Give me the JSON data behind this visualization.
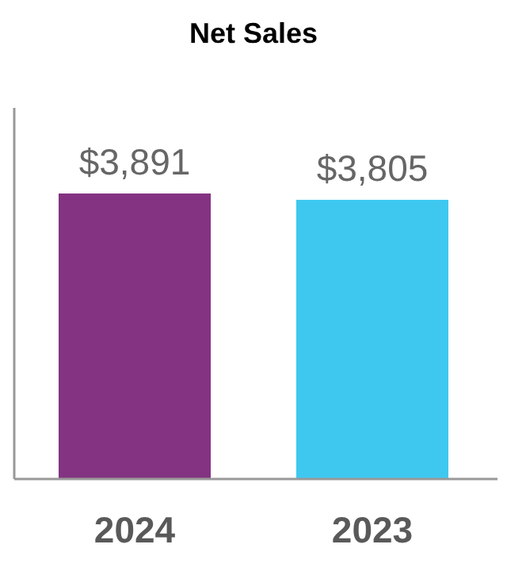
{
  "chart_data": {
    "type": "bar",
    "title": "Net Sales",
    "categories": [
      "2024",
      "2023"
    ],
    "values": [
      3891,
      3805
    ],
    "colors": [
      "#833381",
      "#3ec8f0"
    ],
    "value_labels": [
      "$3,891",
      "$3,805"
    ]
  }
}
